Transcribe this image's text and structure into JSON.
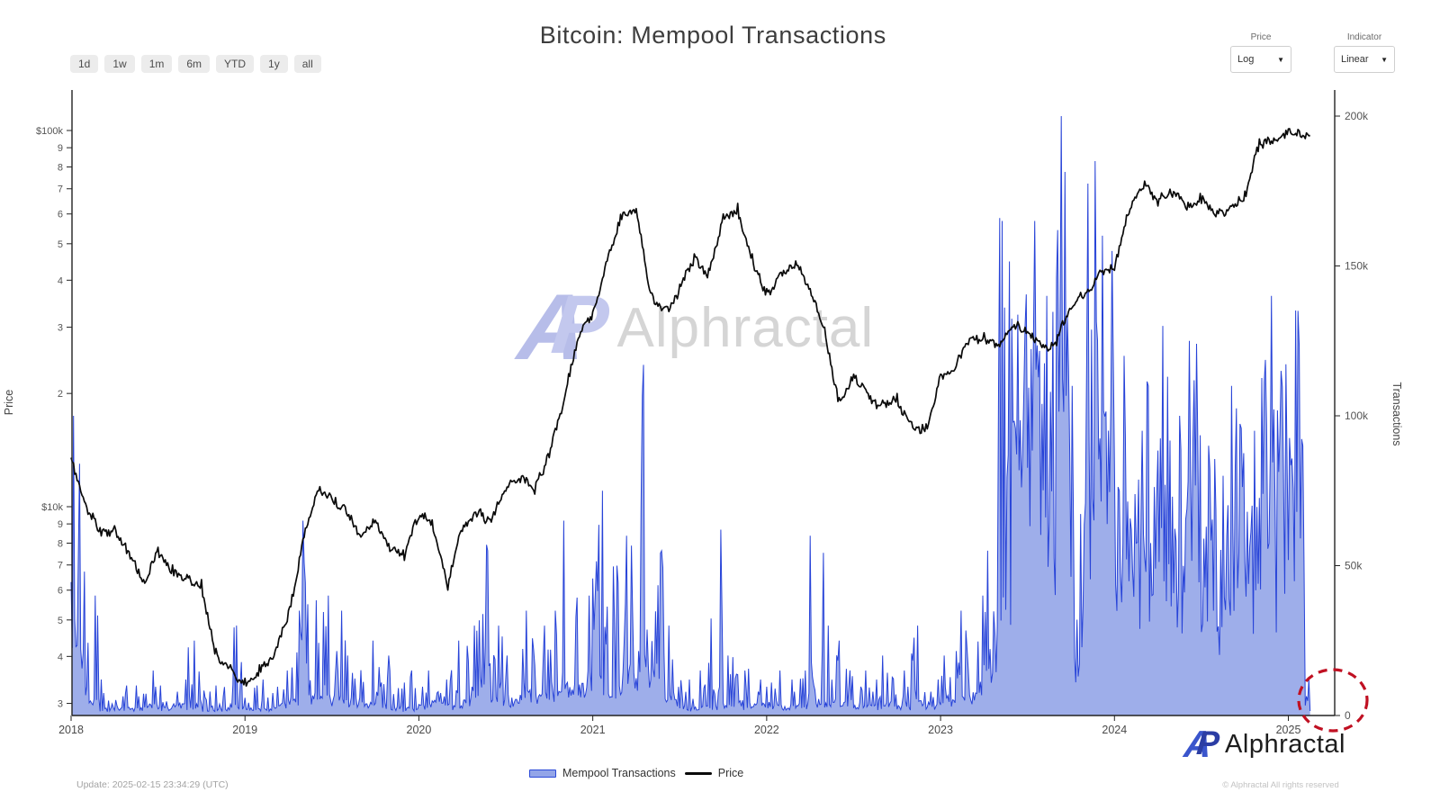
{
  "title": "Bitcoin: Mempool Transactions",
  "toolbar": {
    "ranges": [
      "1d",
      "1w",
      "1m",
      "6m",
      "YTD",
      "1y",
      "all"
    ]
  },
  "controls": {
    "price": {
      "label": "Price",
      "value": "Log"
    },
    "indicator": {
      "label": "Indicator",
      "value": "Linear"
    }
  },
  "watermark": {
    "mark_a": "A",
    "mark_p": "P",
    "text": "Alphractal"
  },
  "legend": [
    {
      "label": "Mempool Transactions",
      "type": "area",
      "fill": "#93a5e8",
      "stroke": "#2b49d8"
    },
    {
      "label": "Price",
      "type": "line",
      "color": "#0a0a0a"
    }
  ],
  "footer": {
    "update": "Update: 2025-02-15 23:34:29 (UTC)",
    "brand_mark_a": "A",
    "brand_mark_p": "P",
    "brand": "Alphractal",
    "copyright": "© Alphractal All rights reserved"
  },
  "chart_data": {
    "type": "area+line",
    "grid": false,
    "colors": {
      "area_fill": "#93a5e8",
      "area_stroke": "#2743d8",
      "price_line": "#0a0a0a",
      "annotation": "#c01022",
      "axis": "#222222",
      "tick_text": "#555555"
    },
    "x_axis": {
      "tick_labels": [
        "2018",
        "2019",
        "2020",
        "2021",
        "2022",
        "2023",
        "2024",
        "2025"
      ],
      "start_year": 2018,
      "end": "2025-02-15"
    },
    "left_axis": {
      "title": "Price",
      "scale": "log",
      "tick_values": [
        100000,
        90000,
        80000,
        70000,
        60000,
        50000,
        40000,
        30000,
        20000,
        10000,
        9000,
        8000,
        7000,
        6000,
        5000,
        4000,
        3000
      ],
      "tick_labels": [
        "$100k",
        "9",
        "8",
        "7",
        "6",
        "5",
        "4",
        "3",
        "2",
        "$10k",
        "9",
        "8",
        "7",
        "6",
        "5",
        "4",
        "3"
      ]
    },
    "right_axis": {
      "title": "Transactions",
      "scale": "linear",
      "tick_values": [
        0,
        50000,
        100000,
        150000,
        200000
      ],
      "tick_labels": [
        "0",
        "50k",
        "100k",
        "150k",
        "200k"
      ],
      "range": [
        0,
        210000
      ]
    },
    "start_month": "2018-01",
    "months_count": 86,
    "series": [
      {
        "name": "Mempool Transactions",
        "axis": "right",
        "type": "area",
        "monthly_base_k": [
          20,
          5,
          2,
          2,
          2,
          3,
          2,
          3,
          2,
          2,
          2,
          3,
          2,
          2,
          3,
          4,
          6,
          5,
          5,
          3,
          3,
          3,
          2,
          2,
          3,
          3,
          3,
          4,
          8,
          5,
          4,
          6,
          6,
          6,
          8,
          8,
          10,
          8,
          10,
          12,
          10,
          5,
          2,
          2,
          3,
          3,
          3,
          3,
          3,
          3,
          3,
          4,
          4,
          4,
          3,
          3,
          4,
          3,
          4,
          3,
          4,
          5,
          6,
          10,
          40,
          60,
          70,
          60,
          80,
          15,
          60,
          80,
          40,
          30,
          35,
          45,
          40,
          55,
          30,
          25,
          35,
          35,
          45,
          40,
          40,
          5
        ],
        "monthly_peak_k": [
          100,
          40,
          12,
          10,
          10,
          15,
          10,
          12,
          25,
          8,
          10,
          30,
          10,
          12,
          15,
          35,
          65,
          40,
          35,
          20,
          25,
          20,
          15,
          15,
          15,
          12,
          25,
          30,
          55,
          30,
          20,
          35,
          30,
          35,
          65,
          40,
          75,
          50,
          60,
          117,
          55,
          30,
          12,
          15,
          62,
          20,
          15,
          12,
          15,
          12,
          15,
          60,
          30,
          25,
          15,
          12,
          20,
          15,
          30,
          12,
          20,
          35,
          40,
          55,
          165,
          130,
          165,
          140,
          200,
          110,
          185,
          155,
          120,
          95,
          110,
          130,
          100,
          125,
          90,
          80,
          110,
          95,
          140,
          115,
          135,
          90
        ]
      },
      {
        "name": "Price",
        "axis": "left",
        "type": "line",
        "monthly_usd": [
          13500,
          10200,
          8800,
          8900,
          7600,
          6400,
          7800,
          7000,
          6600,
          6400,
          4200,
          3800,
          3500,
          3800,
          4000,
          5300,
          8200,
          11000,
          10500,
          9600,
          8300,
          9200,
          7600,
          7200,
          9300,
          8600,
          6000,
          8600,
          9400,
          9100,
          11000,
          11600,
          10800,
          13500,
          19000,
          28000,
          33000,
          45000,
          58000,
          62000,
          37000,
          34000,
          39000,
          47000,
          43000,
          60000,
          64000,
          47000,
          38000,
          42000,
          45000,
          38000,
          30000,
          19500,
          22500,
          20000,
          19200,
          20000,
          16800,
          16600,
          22500,
          23200,
          28000,
          29000,
          27000,
          30000,
          29200,
          26500,
          26800,
          33500,
          37000,
          42500,
          42500,
          60000,
          70000,
          63000,
          66500,
          61500,
          64000,
          59000,
          63000,
          69000,
          95000,
          95500,
          101000,
          97000
        ]
      }
    ],
    "annotation": {
      "type": "dashed-circle",
      "note": "mempool transactions drop to ~0 in Feb 2025",
      "x": "2025-02",
      "y_transactions": 0
    }
  }
}
